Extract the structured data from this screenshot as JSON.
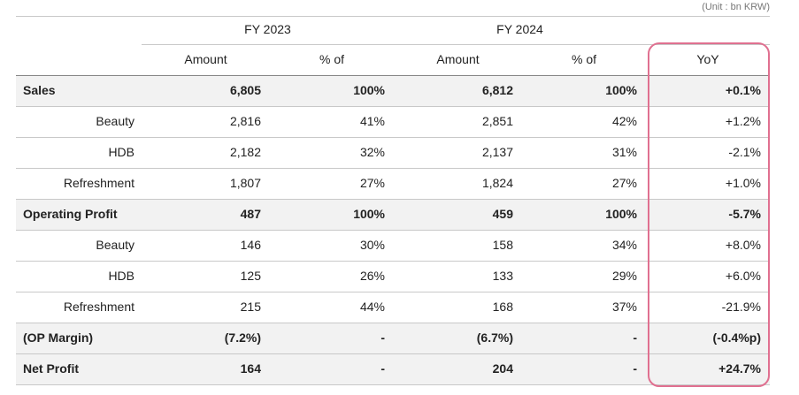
{
  "unit": "(Unit : bn KRW)",
  "header": {
    "years": [
      "FY 2023",
      "FY 2024"
    ],
    "columns": [
      "Amount",
      "% of",
      "Amount",
      "% of",
      "YoY"
    ]
  },
  "table": {
    "rows": [
      {
        "cells": [
          "Sales",
          "6,805",
          "100%",
          "6,812",
          "100%",
          "+0.1%"
        ],
        "bold": true
      },
      {
        "cells": [
          "Beauty",
          "2,816",
          "41%",
          "2,851",
          "42%",
          "+1.2%"
        ],
        "bold": false
      },
      {
        "cells": [
          "HDB",
          "2,182",
          "32%",
          "2,137",
          "31%",
          "-2.1%"
        ],
        "bold": false
      },
      {
        "cells": [
          "Refreshment",
          "1,807",
          "27%",
          "1,824",
          "27%",
          "+1.0%"
        ],
        "bold": false
      },
      {
        "cells": [
          "Operating Profit",
          "487",
          "100%",
          "459",
          "100%",
          "-5.7%"
        ],
        "bold": true
      },
      {
        "cells": [
          "Beauty",
          "146",
          "30%",
          "158",
          "34%",
          "+8.0%"
        ],
        "bold": false
      },
      {
        "cells": [
          "HDB",
          "125",
          "26%",
          "133",
          "29%",
          "+6.0%"
        ],
        "bold": false
      },
      {
        "cells": [
          "Refreshment",
          "215",
          "44%",
          "168",
          "37%",
          "-21.9%"
        ],
        "bold": false
      },
      {
        "cells": [
          "(OP Margin)",
          "(7.2%)",
          "-",
          "(6.7%)",
          "-",
          "(-0.4%p)"
        ],
        "bold": true
      },
      {
        "cells": [
          "Net Profit",
          "164",
          "-",
          "204",
          "-",
          "+24.7%"
        ],
        "bold": true
      }
    ]
  }
}
